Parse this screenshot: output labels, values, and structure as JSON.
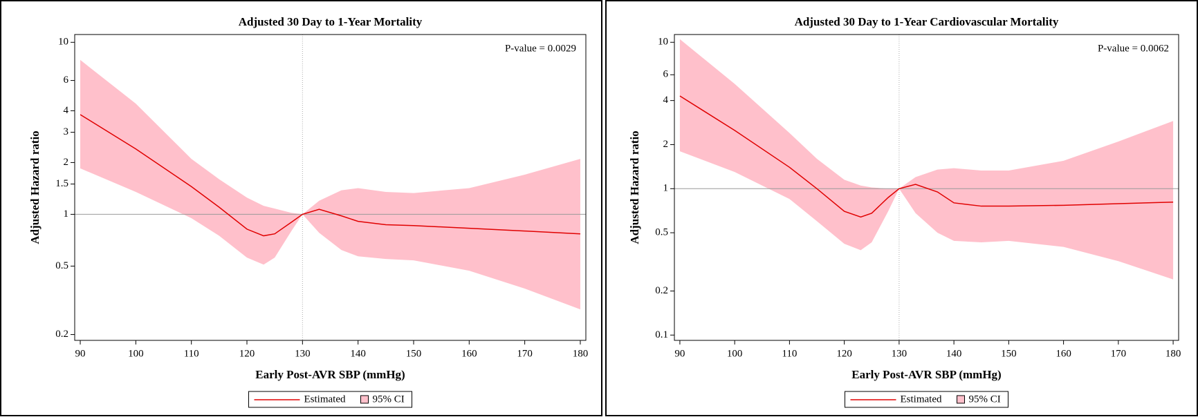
{
  "chart_data": [
    {
      "type": "line",
      "title": "Adjusted 30 Day to 1-Year Mortality",
      "xlabel": "Early Post-AVR SBP (mmHg)",
      "ylabel": "Adjusted Hazard ratio",
      "annotation": "P-value =   0.0029",
      "x": [
        90,
        100,
        110,
        115,
        120,
        123,
        125,
        128,
        130,
        133,
        137,
        140,
        145,
        150,
        160,
        170,
        180
      ],
      "series": [
        {
          "name": "Estimated",
          "color": "#e00000",
          "values": [
            3.8,
            2.4,
            1.45,
            1.1,
            0.82,
            0.75,
            0.77,
            0.9,
            1.0,
            1.07,
            0.98,
            0.91,
            0.87,
            0.86,
            0.83,
            0.8,
            0.77
          ]
        }
      ],
      "ci": {
        "name": "95% CI",
        "color": "#ffc0cb",
        "lower": [
          1.85,
          1.35,
          0.95,
          0.75,
          0.56,
          0.51,
          0.56,
          0.8,
          1.0,
          0.78,
          0.62,
          0.57,
          0.55,
          0.54,
          0.47,
          0.37,
          0.28
        ],
        "upper": [
          7.9,
          4.4,
          2.1,
          1.6,
          1.25,
          1.12,
          1.08,
          1.02,
          1.0,
          1.2,
          1.38,
          1.42,
          1.35,
          1.33,
          1.42,
          1.7,
          2.1
        ]
      },
      "reference_y": 1,
      "reference_x": 130,
      "xlim": [
        89,
        181
      ],
      "xticks": [
        90,
        100,
        110,
        120,
        130,
        140,
        150,
        160,
        170,
        180
      ],
      "ylim": [
        0.185,
        11.1
      ],
      "yticks": [
        0.2,
        0.5,
        1,
        1.5,
        2,
        3,
        4,
        6,
        10
      ],
      "yscale": "log",
      "legend": "bottom"
    },
    {
      "type": "line",
      "title": "Adjusted 30 Day to 1-Year Cardiovascular Mortality",
      "xlabel": "Early Post-AVR SBP (mmHg)",
      "ylabel": "Adjusted Hazard ratio",
      "annotation": "P-value =   0.0062",
      "x": [
        90,
        100,
        110,
        115,
        120,
        123,
        125,
        128,
        130,
        133,
        137,
        140,
        145,
        150,
        160,
        170,
        180
      ],
      "series": [
        {
          "name": "Estimated",
          "color": "#e00000",
          "values": [
            4.3,
            2.5,
            1.4,
            1.0,
            0.7,
            0.64,
            0.68,
            0.87,
            1.0,
            1.07,
            0.95,
            0.8,
            0.76,
            0.76,
            0.77,
            0.79,
            0.81
          ]
        }
      ],
      "ci": {
        "name": "95% CI",
        "color": "#ffc0cb",
        "lower": [
          1.8,
          1.3,
          0.85,
          0.6,
          0.42,
          0.38,
          0.43,
          0.7,
          1.0,
          0.68,
          0.5,
          0.44,
          0.43,
          0.44,
          0.4,
          0.32,
          0.24
        ],
        "upper": [
          10.5,
          5.2,
          2.4,
          1.6,
          1.15,
          1.05,
          1.02,
          1.0,
          1.0,
          1.2,
          1.35,
          1.38,
          1.33,
          1.33,
          1.55,
          2.1,
          2.9
        ]
      },
      "reference_y": 1,
      "reference_x": 130,
      "xlim": [
        89,
        181
      ],
      "xticks": [
        90,
        100,
        110,
        120,
        130,
        140,
        150,
        160,
        170,
        180
      ],
      "ylim": [
        0.092,
        11.3
      ],
      "yticks": [
        0.1,
        0.2,
        0.5,
        1,
        2,
        4,
        6,
        10
      ],
      "yscale": "log",
      "legend": "bottom"
    }
  ]
}
